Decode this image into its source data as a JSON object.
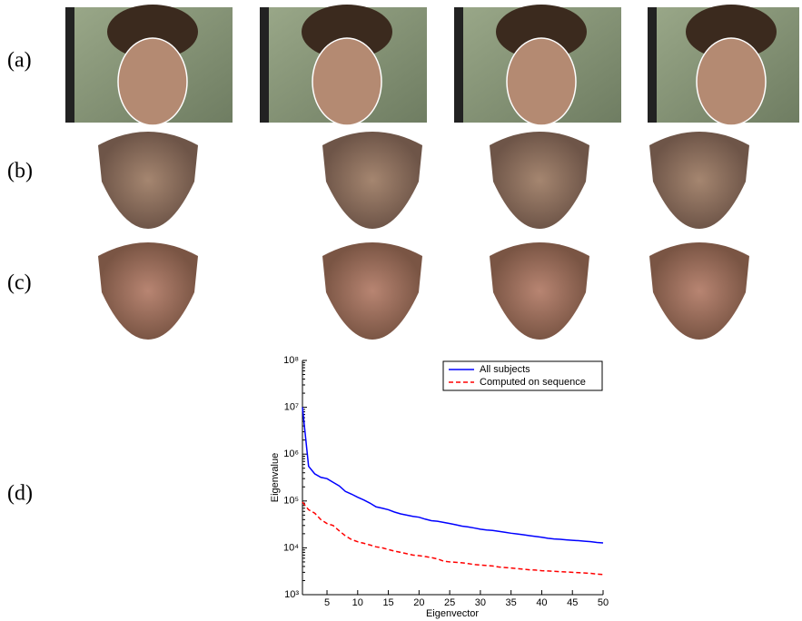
{
  "panels": {
    "labels": [
      "(a)",
      "(b)",
      "(c)",
      "(d)"
    ]
  },
  "chart_data": {
    "type": "line",
    "xlabel": "Eigenvector",
    "ylabel": "Eigenvalue",
    "x": [
      1,
      2,
      3,
      4,
      5,
      6,
      7,
      8,
      9,
      10,
      11,
      12,
      13,
      14,
      15,
      16,
      17,
      18,
      19,
      20,
      21,
      22,
      23,
      24,
      25,
      26,
      27,
      28,
      29,
      30,
      31,
      32,
      33,
      34,
      35,
      36,
      37,
      38,
      39,
      40,
      41,
      42,
      43,
      44,
      45,
      46,
      47,
      48,
      49,
      50
    ],
    "series": [
      {
        "name": "All subjects",
        "color": "#0000ff",
        "dash": "solid",
        "values": [
          10000000,
          550000,
          380000,
          320000,
          300000,
          250000,
          210000,
          160000,
          140000,
          120000,
          105000,
          90000,
          75000,
          70000,
          65000,
          58000,
          53000,
          50000,
          47000,
          45000,
          41000,
          38000,
          37000,
          35000,
          33000,
          31000,
          29000,
          28000,
          26500,
          25000,
          24000,
          23500,
          22500,
          21500,
          20500,
          19800,
          19000,
          18200,
          17500,
          16800,
          16000,
          15500,
          15200,
          14800,
          14500,
          14200,
          13800,
          13500,
          13000,
          12700
        ]
      },
      {
        "name": "Computed on sequence",
        "color": "#ff0000",
        "dash": "dashed",
        "values": [
          95000,
          65000,
          55000,
          40000,
          33000,
          30000,
          23000,
          18000,
          15000,
          13500,
          12500,
          11500,
          10500,
          10000,
          9200,
          8500,
          8000,
          7500,
          7000,
          6800,
          6500,
          6200,
          5800,
          5200,
          5000,
          4900,
          4800,
          4600,
          4400,
          4300,
          4200,
          4100,
          3900,
          3800,
          3700,
          3600,
          3500,
          3400,
          3350,
          3250,
          3200,
          3150,
          3100,
          3050,
          3000,
          2950,
          2900,
          2850,
          2750,
          2700
        ]
      }
    ],
    "xlim": [
      1,
      50
    ],
    "xticks": [
      5,
      10,
      15,
      20,
      25,
      30,
      35,
      40,
      45,
      50
    ],
    "ylim": [
      1000,
      100000000
    ],
    "log_y": true,
    "yticks": [
      {
        "value": 1000,
        "label": "10³"
      },
      {
        "value": 10000,
        "label": "10⁴"
      },
      {
        "value": 100000,
        "label": "10⁵"
      },
      {
        "value": 1000000,
        "label": "10⁶"
      },
      {
        "value": 10000000,
        "label": "10⁷"
      },
      {
        "value": 100000000,
        "label": "10⁸"
      }
    ],
    "legend": "upper right",
    "grid": false
  }
}
